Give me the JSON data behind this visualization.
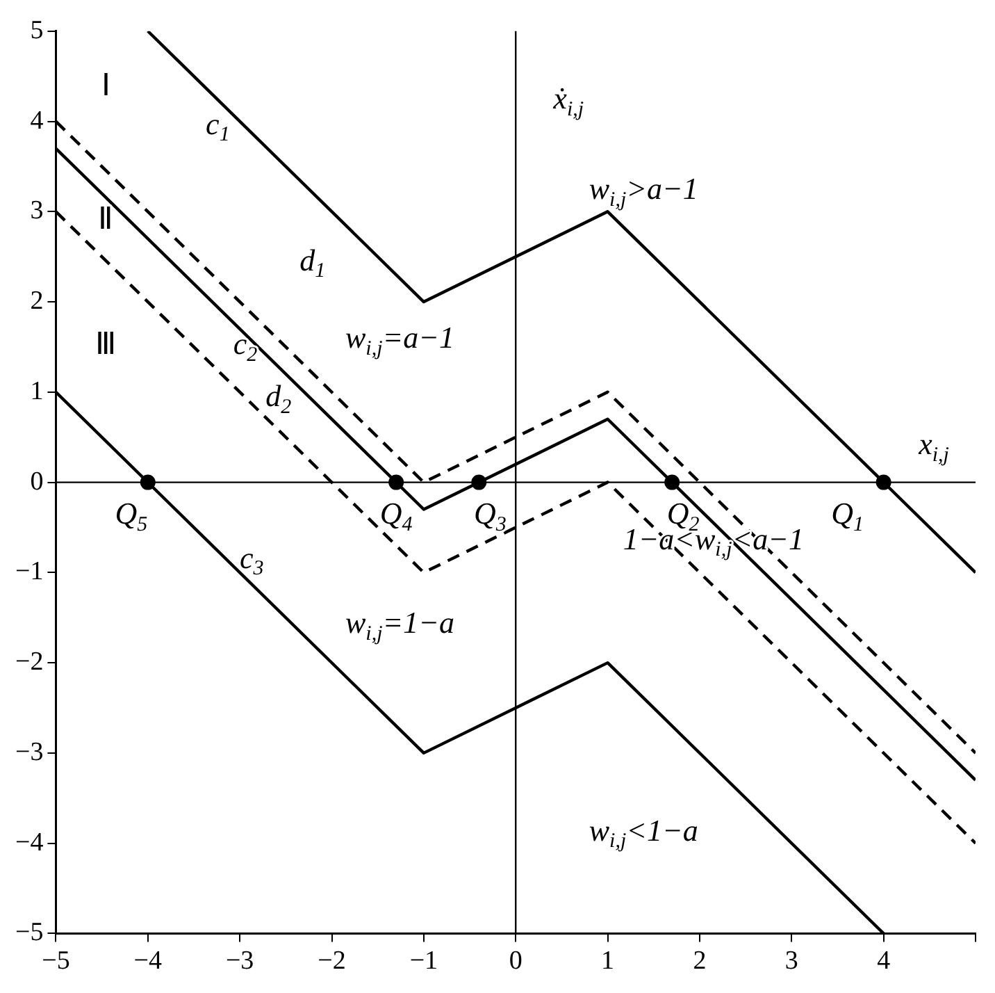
{
  "chart_data": {
    "type": "line",
    "xlim": [
      -5,
      5
    ],
    "ylim": [
      -5,
      5
    ],
    "xticks": [
      -5,
      -4,
      -3,
      -2,
      -1,
      0,
      1,
      2,
      3,
      4,
      {
        "value": 5,
        "label": null
      }
    ],
    "yticks": [
      -5,
      -4,
      -3,
      -2,
      -1,
      0,
      1,
      2,
      3,
      4,
      5
    ],
    "grid": false,
    "legend": false,
    "ref_lines": [
      {
        "axis": "x",
        "value": 0,
        "color": "#000000",
        "label": "ẋ$_{i,j}$"
      },
      {
        "axis": "y",
        "value": 0,
        "color": "#000000",
        "label": "x$_{i,j}$"
      }
    ],
    "series": [
      {
        "color": "#000000",
        "line_style": "solid",
        "marker": "none",
        "x": [
          -4,
          -1,
          1,
          5
        ],
        "values": [
          5,
          2,
          3,
          -1
        ]
      },
      {
        "color": "#000000",
        "line_style": "dashed",
        "marker": "none",
        "x": [
          -5,
          -1,
          1,
          5
        ],
        "values": [
          4,
          0,
          1,
          -3
        ]
      },
      {
        "color": "#000000",
        "line_style": "solid",
        "marker": "none",
        "x": [
          -5,
          -1,
          1,
          5
        ],
        "values": [
          3.7,
          -0.3,
          0.7,
          -3.3
        ]
      },
      {
        "color": "#000000",
        "line_style": "dashed",
        "marker": "none",
        "x": [
          -5,
          -1,
          1,
          5
        ],
        "values": [
          3,
          -1,
          0,
          -4
        ]
      },
      {
        "color": "#000000",
        "line_style": "solid",
        "marker": "none",
        "x": [
          -5,
          -1,
          1,
          4
        ],
        "values": [
          1,
          -3,
          -2,
          -5
        ]
      },
      {
        "type": "scatter",
        "color": "#000000",
        "marker": "circle",
        "x": [
          4,
          1.7,
          -0.4,
          -1.3,
          -4
        ],
        "values": [
          0,
          0,
          0,
          0,
          0
        ]
      }
    ],
    "annotations": [
      "Ⅰ",
      "Ⅱ",
      "Ⅲ",
      "c$_{1}$",
      "d$_{1}$",
      "c$_{2}$",
      "d$_{2}$",
      "c$_{3}$",
      "w$_{i,j}$>a−1",
      "w$_{i,j}$=a−1",
      "1−a<w$_{i,j}$<a−1",
      "w$_{i,j}$=1−a",
      "w$_{i,j}$<1−a",
      {
        "text": "Q$_{1}$",
        "x": 4,
        "y": 0
      },
      {
        "text": "Q$_{2}$",
        "x": 1.7,
        "y": 0
      },
      {
        "text": "Q$_{3}$",
        "x": -0.4,
        "y": 0
      },
      {
        "text": "Q$_{4}$",
        "x": -1.3,
        "y": 0
      },
      {
        "text": "Q$_{5}$",
        "x": -4,
        "y": 0
      }
    ]
  }
}
